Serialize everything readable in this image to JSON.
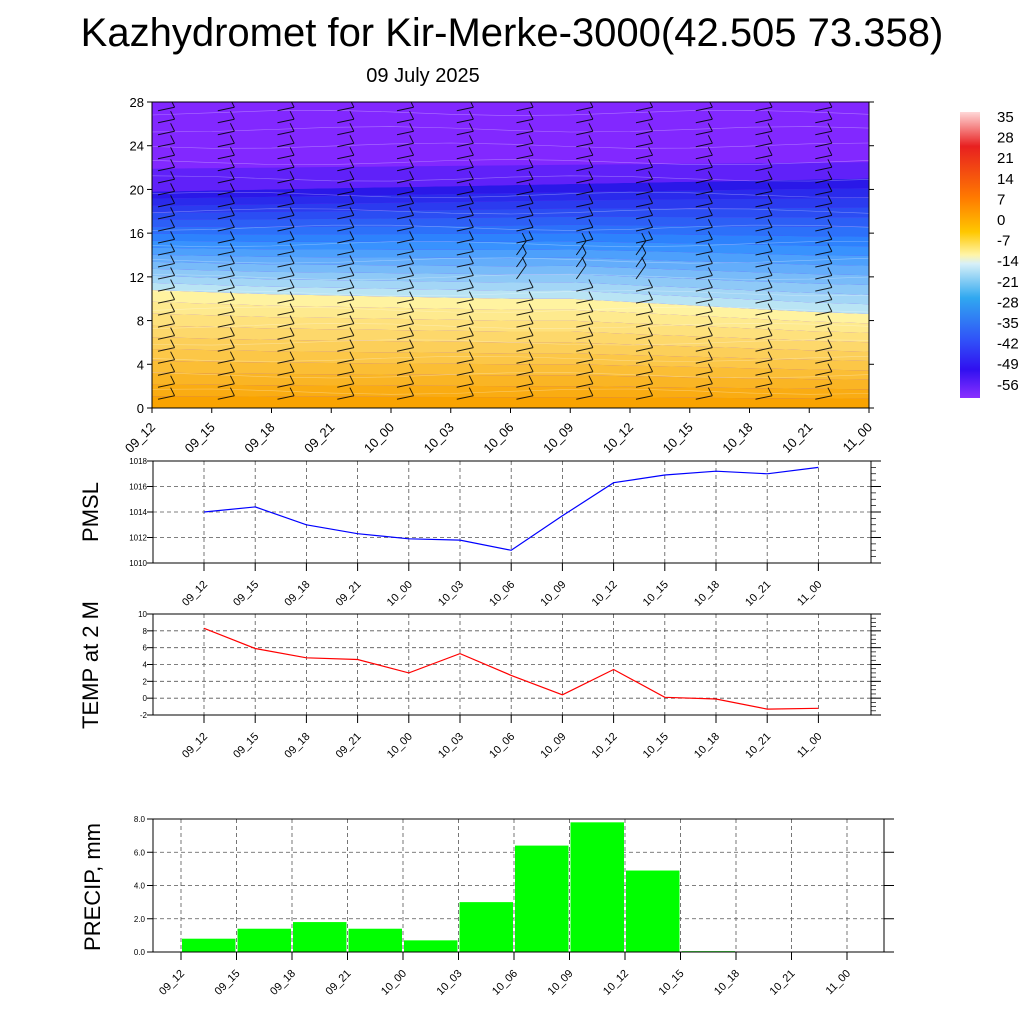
{
  "page_title": "Kazhydromet for Kir-Merke-3000(42.505 73.358)",
  "date_label": "09 July 2025",
  "time_labels": [
    "09_12",
    "09_15",
    "09_18",
    "09_21",
    "10_00",
    "10_03",
    "10_06",
    "10_09",
    "10_12",
    "10_15",
    "10_18",
    "10_21",
    "11_00"
  ],
  "chart_data": [
    {
      "type": "heatmap",
      "title": "",
      "ylabel": "",
      "ylim": [
        0,
        28
      ],
      "yticks": [
        0,
        4,
        8,
        12,
        16,
        20,
        24,
        28
      ],
      "overlay": "wind barbs",
      "colorbar_labels": [
        "35",
        "28",
        "21",
        "14",
        "7",
        "0",
        "-7",
        "-14",
        "-21",
        "-28",
        "-35",
        "-42",
        "-49",
        "-56"
      ],
      "freezing_level": [
        10.8,
        10.6,
        10.4,
        10.3,
        10.2,
        10.1,
        10.0,
        10.0,
        9.7,
        9.4,
        9.1,
        8.8,
        8.6
      ],
      "tropopause_level": [
        19.8,
        19.9,
        20.0,
        20.1,
        20.2,
        20.3,
        20.4,
        20.5,
        20.6,
        20.7,
        20.8,
        20.9,
        21.0
      ],
      "colors": {
        "warm_bottom": "#f9a300",
        "warm_top": "#fff3a0",
        "cold_low": "#b9e4f4",
        "cold_mid": "#2d8bff",
        "tropo": "#2a18e8",
        "strato": "#8228ff"
      }
    },
    {
      "type": "line",
      "ylabel": "PMSL",
      "ylim": [
        1010,
        1018
      ],
      "yticks": [
        1010,
        1012,
        1014,
        1016,
        1018
      ],
      "series": [
        {
          "values": [
            1014.0,
            1014.4,
            1013.0,
            1012.3,
            1011.9,
            1011.8,
            1011.0,
            1013.7,
            1016.3,
            1016.9,
            1017.2,
            1017.0,
            1017.5
          ],
          "color": "#0000ff"
        }
      ]
    },
    {
      "type": "line",
      "ylabel": "TEMP at 2 M",
      "ylim": [
        -2,
        10
      ],
      "yticks": [
        -2,
        0,
        2,
        4,
        6,
        8,
        10
      ],
      "series": [
        {
          "values": [
            8.3,
            5.9,
            4.8,
            4.6,
            3.0,
            5.3,
            2.7,
            0.4,
            3.4,
            0.1,
            -0.1,
            -1.3,
            -1.2
          ],
          "color": "#ff0000"
        }
      ]
    },
    {
      "type": "bar",
      "ylabel": "PRECIP, mm",
      "ylim": [
        0,
        8
      ],
      "ytick_labels": [
        "0.0",
        "2.0",
        "4.0",
        "6.0",
        "8.0"
      ],
      "values": [
        0.8,
        1.4,
        1.8,
        1.4,
        0.7,
        3.0,
        6.4,
        7.8,
        4.9,
        0.05,
        0,
        0
      ],
      "color": "#00ff00"
    }
  ]
}
